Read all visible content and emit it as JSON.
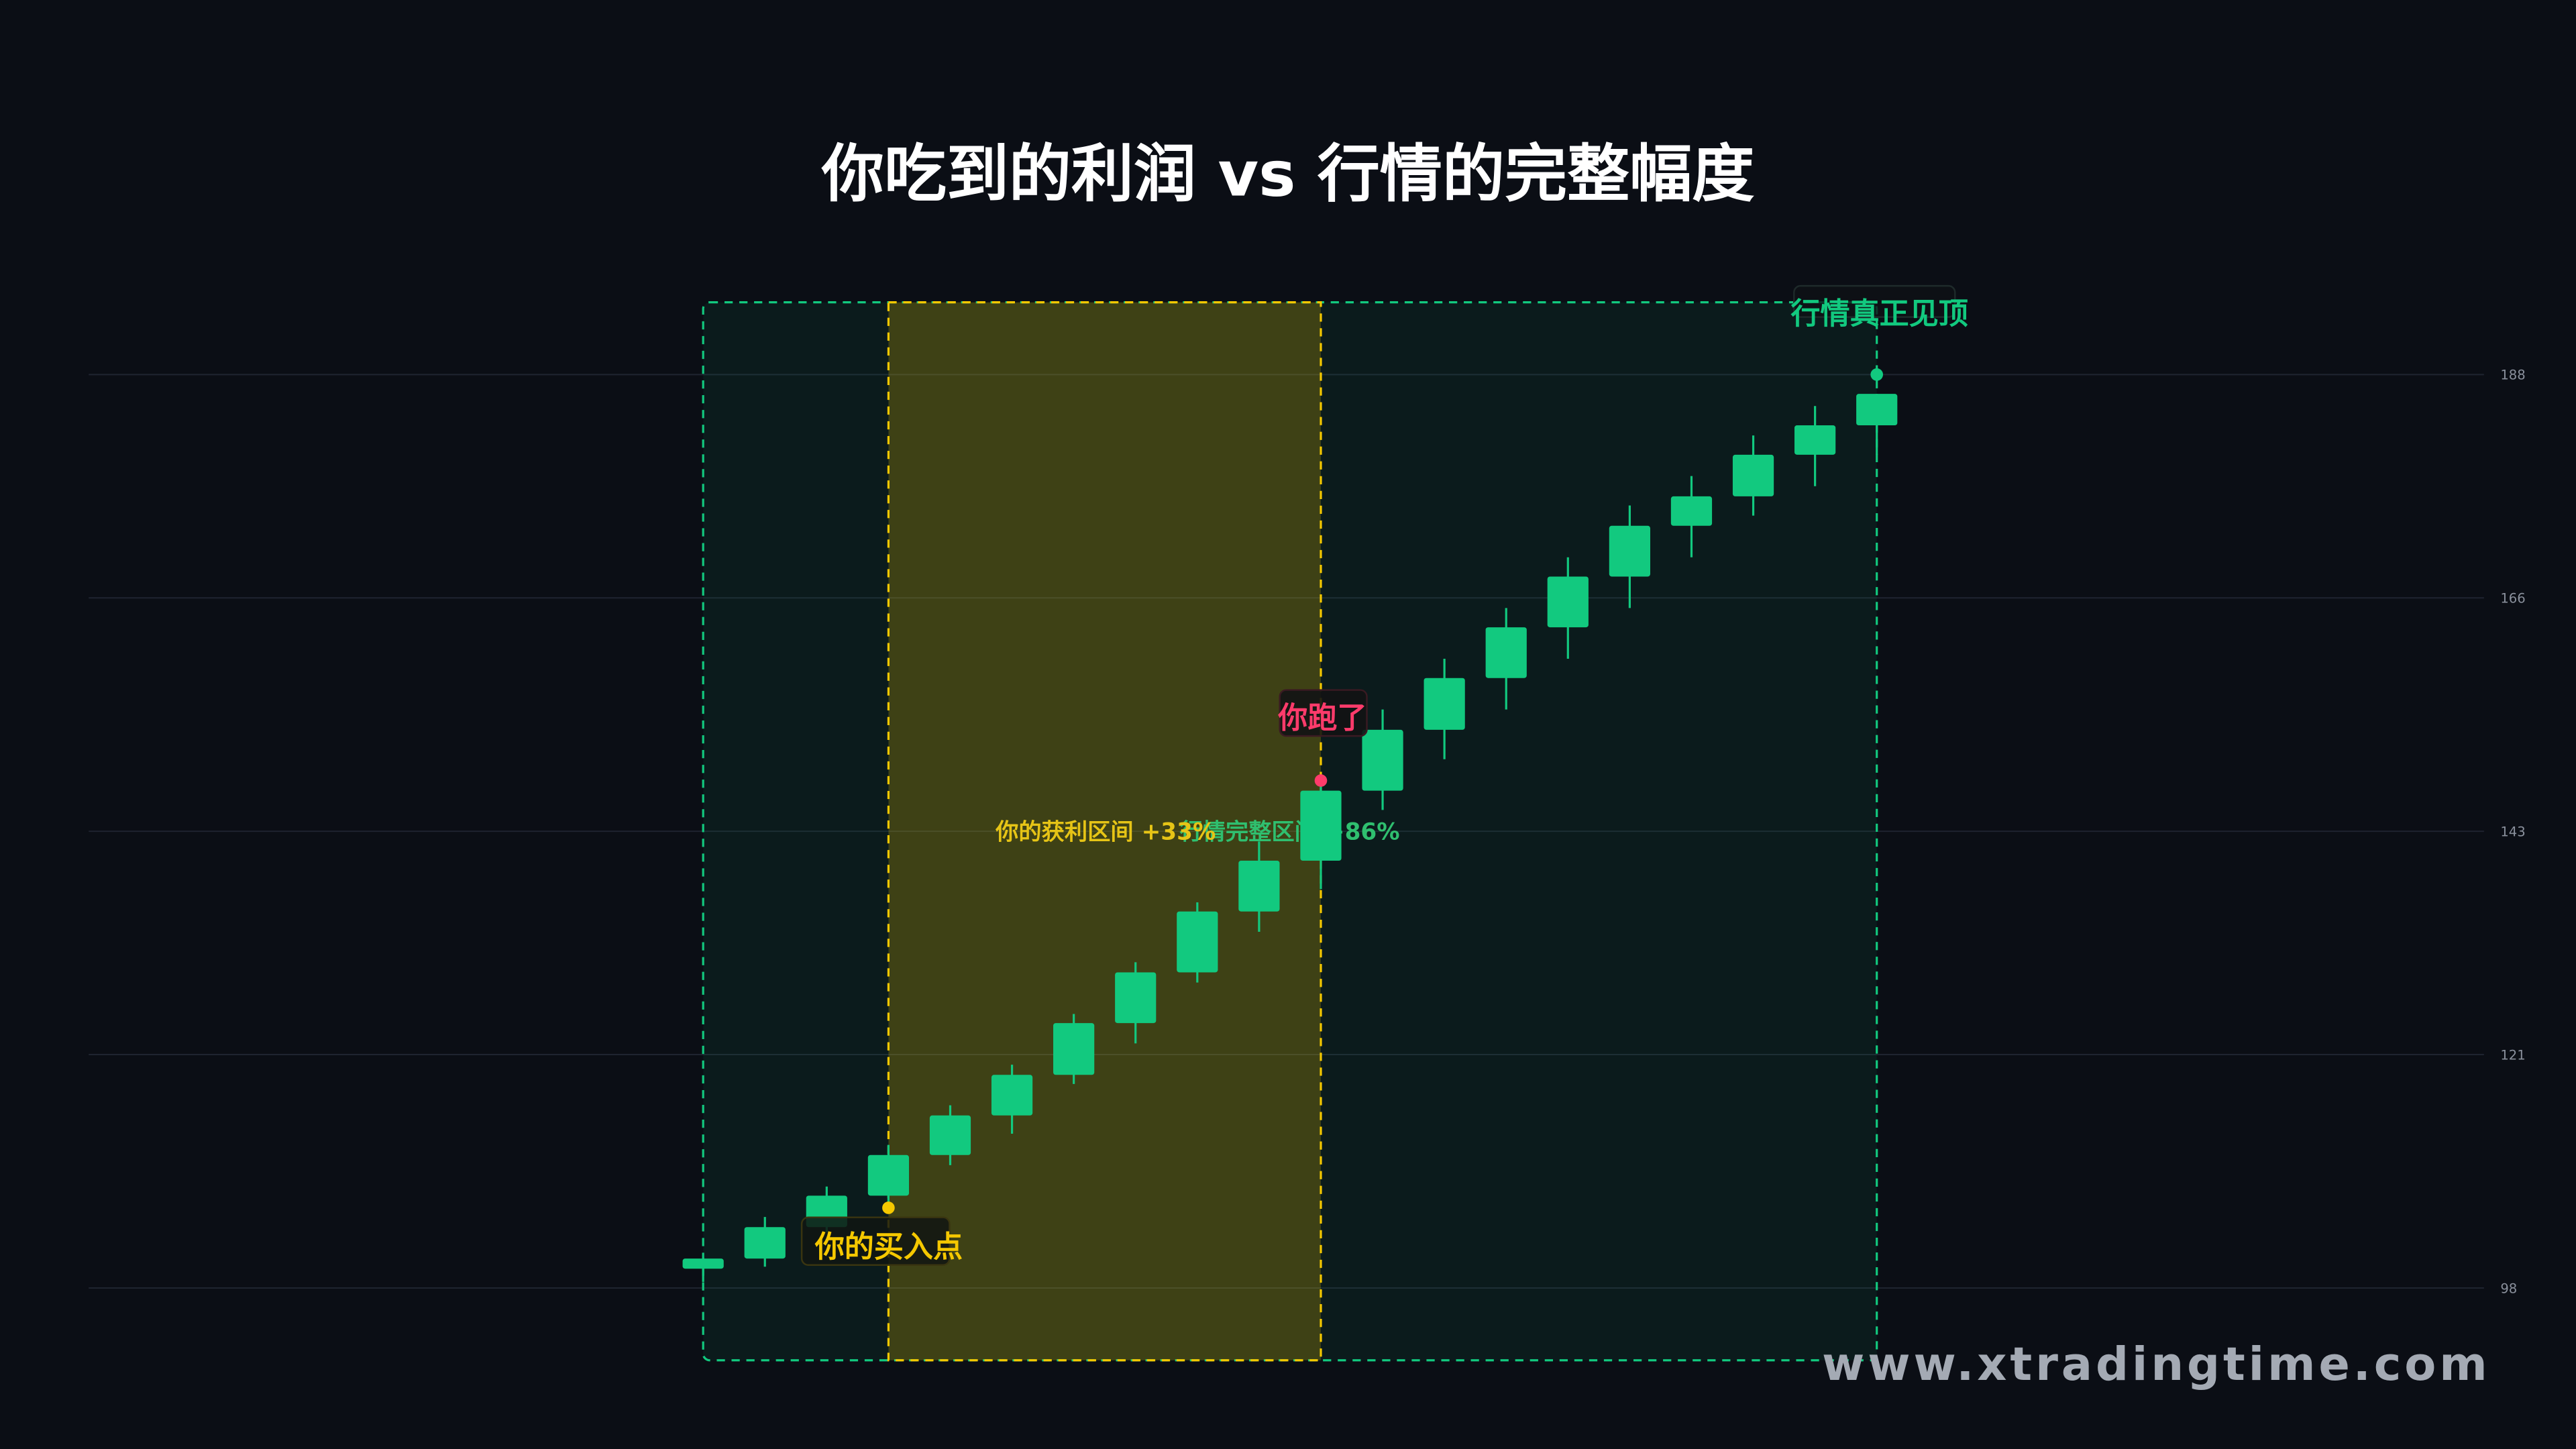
{
  "title": "你吃到的利润 vs 行情的完整幅度",
  "watermark": "www.xtradingtime.com",
  "colors": {
    "background": "#0b0e15",
    "candle_up": "#12c97f",
    "profit_zone": "#f5c800",
    "full_zone": "#12c97f",
    "exit": "#ff3b6b",
    "grid": "#1f2430",
    "tick_text": "#8a909c"
  },
  "annotations": {
    "buy_point": "你的买入点",
    "exit_point": "你跑了",
    "top_point": "行情真正见顶",
    "profit_range": "你的获利区间 +33%",
    "full_range": "行情完整区间 +86%"
  },
  "chart_data": {
    "type": "candlestick",
    "title": "你吃到的利润 vs 行情的完整幅度",
    "xlabel": "",
    "ylabel": "",
    "ylim": [
      98,
      188
    ],
    "yticks": [
      "188",
      "166",
      "143",
      "121",
      "98"
    ],
    "ytick_values": [
      188,
      166,
      143,
      121,
      98
    ],
    "grid": true,
    "candles": [
      {
        "open": 99.9,
        "high": 101.0,
        "low": 98.6,
        "close": 100.9
      },
      {
        "open": 100.9,
        "high": 105.0,
        "low": 100.1,
        "close": 104.0
      },
      {
        "open": 104.0,
        "high": 108.0,
        "low": 103.5,
        "close": 107.1
      },
      {
        "open": 107.1,
        "high": 112.1,
        "low": 106.2,
        "close": 111.1
      },
      {
        "open": 111.1,
        "high": 116.0,
        "low": 110.1,
        "close": 115.0
      },
      {
        "open": 115.0,
        "high": 120.0,
        "low": 113.2,
        "close": 119.0
      },
      {
        "open": 119.0,
        "high": 125.0,
        "low": 118.1,
        "close": 124.1
      },
      {
        "open": 124.1,
        "high": 130.1,
        "low": 122.1,
        "close": 129.1
      },
      {
        "open": 129.1,
        "high": 136.0,
        "low": 128.1,
        "close": 135.1
      },
      {
        "open": 135.1,
        "high": 142.0,
        "low": 133.1,
        "close": 140.1
      },
      {
        "open": 140.1,
        "high": 147.5,
        "low": 137.3,
        "close": 147.0
      },
      {
        "open": 147.0,
        "high": 155.0,
        "low": 145.1,
        "close": 153.0
      },
      {
        "open": 153.0,
        "high": 160.0,
        "low": 150.1,
        "close": 158.1
      },
      {
        "open": 158.1,
        "high": 165.0,
        "low": 155.0,
        "close": 163.1
      },
      {
        "open": 163.1,
        "high": 170.0,
        "low": 160.0,
        "close": 168.1
      },
      {
        "open": 168.1,
        "high": 175.1,
        "low": 165.0,
        "close": 173.1
      },
      {
        "open": 173.1,
        "high": 178.0,
        "low": 170.0,
        "close": 176.0
      },
      {
        "open": 176.0,
        "high": 182.0,
        "low": 174.1,
        "close": 180.1
      },
      {
        "open": 180.1,
        "high": 184.9,
        "low": 177.0,
        "close": 183.0
      },
      {
        "open": 183.0,
        "high": 186.1,
        "low": 180.1,
        "close": 186.1
      }
    ],
    "buy_point": {
      "candle_index": 3,
      "price": 105.9
    },
    "exit_point": {
      "candle_index": 10,
      "price": 148.0
    },
    "top_point": {
      "candle_index": 19,
      "price": 188.0
    },
    "profit_zone_candles": [
      3,
      10
    ],
    "full_zone_candles": [
      0,
      19
    ],
    "profit_pct": 33,
    "full_pct": 86
  }
}
